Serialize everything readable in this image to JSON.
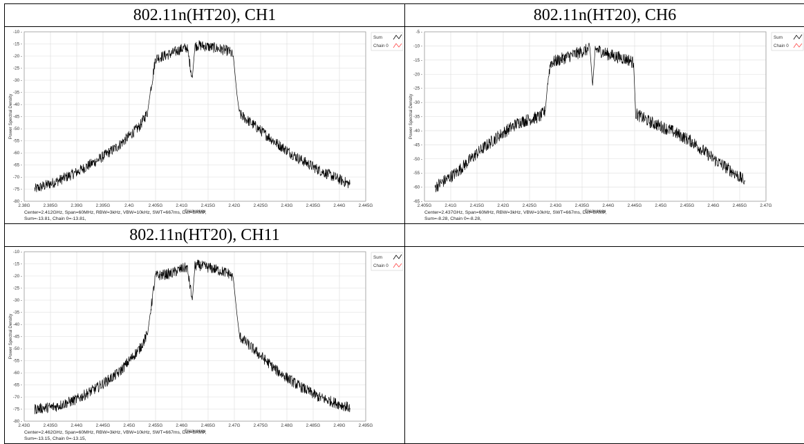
{
  "colors": {
    "sum": "#000000",
    "chain0": "#ff4444",
    "grid": "#dcdcdc",
    "frame": "#9a9a9a"
  },
  "panels": [
    {
      "title": "802.11n(HT20), CH1",
      "legend": {
        "sum": "Sum",
        "chain0": "Chain 0"
      },
      "info_line1": "Center=2.412GHz, Span=60MHz, RBW=3kHz, VBW=10kHz, SWT=667ms, Det=SAMP,",
      "info_line2": "Sum=-13.81, Chain 0=-13.81,"
    },
    {
      "title": "802.11n(HT20), CH6",
      "legend": {
        "sum": "Sum",
        "chain0": "Chain 0"
      },
      "info_line1": "Center=2.437GHz, Span=60MHz, RBW=3kHz, VBW=10kHz, SWT=667ms, Det=SAMP,",
      "info_line2": "Sum=-8.28, Chain 0=-8.28,"
    },
    {
      "title": "802.11n(HT20), CH11",
      "legend": {
        "sum": "Sum",
        "chain0": "Chain 0"
      },
      "info_line1": "Center=2.462GHz, Span=60MHz, RBW=3kHz, VBW=10kHz, SWT=667ms, Det=SAMP,",
      "info_line2": "Sum=-13.15, Chain 0=-13.15,"
    }
  ],
  "chart_data": [
    {
      "type": "line",
      "xlabel": "Frequency",
      "ylabel": "Power Spectral Density",
      "xlim": [
        2.38,
        2.445
      ],
      "ylim": [
        -80,
        -10
      ],
      "xticks": [
        2.38,
        2.385,
        2.39,
        2.395,
        2.4,
        2.405,
        2.41,
        2.415,
        2.42,
        2.425,
        2.43,
        2.435,
        2.44,
        2.445
      ],
      "xtick_labels": [
        "2.38G",
        "2.385G",
        "2.39G",
        "2.395G",
        "2.4G",
        "2.405G",
        "2.41G",
        "2.415G",
        "2.42G",
        "2.425G",
        "2.43G",
        "2.435G",
        "2.44G",
        "2.445G"
      ],
      "yticks": [
        -10,
        -15,
        -20,
        -25,
        -30,
        -35,
        -40,
        -45,
        -50,
        -55,
        -60,
        -65,
        -70,
        -75,
        -80
      ],
      "grid": true,
      "legend_position": "top-right",
      "series": [
        {
          "name": "Sum",
          "x": [
            2.382,
            2.386,
            2.39,
            2.394,
            2.398,
            2.402,
            2.4035,
            2.404,
            2.405,
            2.408,
            2.41,
            2.411,
            2.412,
            2.4125,
            2.413,
            2.416,
            2.419,
            2.4198,
            2.4205,
            2.421,
            2.424,
            2.428,
            2.432,
            2.436,
            2.44,
            2.442
          ],
          "y": [
            -75,
            -72,
            -68,
            -63,
            -57,
            -49,
            -43,
            -35,
            -21,
            -19,
            -17,
            -16.5,
            -29,
            -16,
            -15.5,
            -16.5,
            -18,
            -20,
            -36,
            -44,
            -49,
            -56,
            -62,
            -67,
            -71,
            -73
          ]
        },
        {
          "name": "Chain 0",
          "x": [],
          "y": []
        }
      ]
    },
    {
      "type": "line",
      "xlabel": "Frequency",
      "ylabel": "Power Spectral Density",
      "xlim": [
        2.405,
        2.47
      ],
      "ylim": [
        -65,
        -5
      ],
      "xticks": [
        2.405,
        2.41,
        2.415,
        2.42,
        2.425,
        2.43,
        2.435,
        2.44,
        2.445,
        2.45,
        2.455,
        2.46,
        2.465,
        2.47
      ],
      "xtick_labels": [
        "2.405G",
        "2.41G",
        "2.415G",
        "2.42G",
        "2.425G",
        "2.43G",
        "2.435G",
        "2.44G",
        "2.445G",
        "2.45G",
        "2.455G",
        "2.46G",
        "2.465G",
        "2.47G"
      ],
      "yticks": [
        -5,
        -10,
        -15,
        -20,
        -25,
        -30,
        -35,
        -40,
        -45,
        -50,
        -55,
        -60,
        -65
      ],
      "grid": true,
      "legend_position": "top-right",
      "series": [
        {
          "name": "Sum",
          "x": [
            2.407,
            2.411,
            2.415,
            2.419,
            2.423,
            2.427,
            2.428,
            2.4285,
            2.429,
            2.432,
            2.435,
            2.4365,
            2.437,
            2.4375,
            2.44,
            2.444,
            2.4448,
            2.4452,
            2.448,
            2.452,
            2.456,
            2.46,
            2.464,
            2.466
          ],
          "y": [
            -60,
            -55,
            -48,
            -42,
            -37,
            -35,
            -33,
            -22,
            -16,
            -14,
            -12,
            -11,
            -24,
            -11,
            -13,
            -15,
            -16,
            -34,
            -37,
            -40,
            -44,
            -50,
            -55,
            -58
          ]
        },
        {
          "name": "Chain 0",
          "x": [],
          "y": []
        }
      ]
    },
    {
      "type": "line",
      "xlabel": "Frequency",
      "ylabel": "Power Spectral Density",
      "xlim": [
        2.43,
        2.495
      ],
      "ylim": [
        -80,
        -10
      ],
      "xticks": [
        2.43,
        2.435,
        2.44,
        2.445,
        2.45,
        2.455,
        2.46,
        2.465,
        2.47,
        2.475,
        2.48,
        2.485,
        2.49,
        2.495
      ],
      "xtick_labels": [
        "2.43G",
        "2.435G",
        "2.44G",
        "2.445G",
        "2.45G",
        "2.455G",
        "2.46G",
        "2.465G",
        "2.47G",
        "2.475G",
        "2.48G",
        "2.485G",
        "2.49G",
        "2.495G"
      ],
      "yticks": [
        -10,
        -15,
        -20,
        -25,
        -30,
        -35,
        -40,
        -45,
        -50,
        -55,
        -60,
        -65,
        -70,
        -75,
        -80
      ],
      "grid": true,
      "legend_position": "top-right",
      "series": [
        {
          "name": "Sum",
          "x": [
            2.432,
            2.436,
            2.44,
            2.444,
            2.448,
            2.452,
            2.4535,
            2.454,
            2.455,
            2.458,
            2.46,
            2.461,
            2.462,
            2.4625,
            2.463,
            2.466,
            2.469,
            2.4698,
            2.4705,
            2.471,
            2.474,
            2.478,
            2.482,
            2.486,
            2.49,
            2.492
          ],
          "y": [
            -75,
            -74,
            -71,
            -66,
            -60,
            -50,
            -44,
            -35,
            -20,
            -19,
            -17,
            -16.5,
            -30,
            -16,
            -15.5,
            -17,
            -19,
            -21,
            -36,
            -45,
            -51,
            -59,
            -65,
            -70,
            -73,
            -74.5
          ]
        },
        {
          "name": "Chain 0",
          "x": [],
          "y": []
        }
      ]
    }
  ]
}
